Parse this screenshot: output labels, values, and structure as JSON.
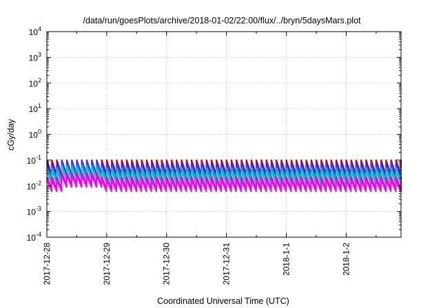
{
  "chart_data": {
    "type": "line",
    "title": "/data/run/goesPlots/archive/2018-01-02/22:00/flux/../bryn/5daysMars.plot",
    "xlabel": "Coordinated Universal Time (UTC)",
    "ylabel": "cGy/day",
    "yscale": "log",
    "ylim": [
      0.0001,
      10000
    ],
    "y_ticks": [
      {
        "base": "10",
        "exp": "-4"
      },
      {
        "base": "10",
        "exp": "-3"
      },
      {
        "base": "10",
        "exp": "-2"
      },
      {
        "base": "10",
        "exp": "-1"
      },
      {
        "base": "10",
        "exp": "0"
      },
      {
        "base": "10",
        "exp": "1"
      },
      {
        "base": "10",
        "exp": "2"
      },
      {
        "base": "10",
        "exp": "3"
      },
      {
        "base": "10",
        "exp": "4"
      }
    ],
    "x_ticks": [
      "2017-12-28",
      "2017-12-29",
      "2017-12-30",
      "2017-12-31",
      "2018-1-1",
      "2018-1-2"
    ],
    "xlim": [
      "2017-12-28T00:00",
      "2018-01-02T22:00"
    ],
    "grid": true,
    "series_shape": "sawtooth",
    "sawtooth_period_hours": 2,
    "series": [
      {
        "color": "#c00000",
        "peak": 0.1,
        "trough": 0.028,
        "elevated_peak": 0.1
      },
      {
        "color": "#3333ff",
        "peak": 0.075,
        "trough": 0.022,
        "elevated_peak": 0.09
      },
      {
        "color": "#00aaff",
        "peak": 0.05,
        "trough": 0.015,
        "elevated_peak": 0.065
      },
      {
        "color": "#22ccaa",
        "peak": 0.035,
        "trough": 0.011,
        "elevated_peak": 0.05
      },
      {
        "color": "#cc00cc",
        "peak": 0.022,
        "trough": 0.0075,
        "elevated_peak": 0.032
      },
      {
        "color": "#ff00ff",
        "peak": 0.017,
        "trough": 0.006,
        "elevated_peak": 0.025
      }
    ],
    "elevated_interval": [
      "2017-12-28T06:00",
      "2017-12-28T20:00"
    ]
  }
}
